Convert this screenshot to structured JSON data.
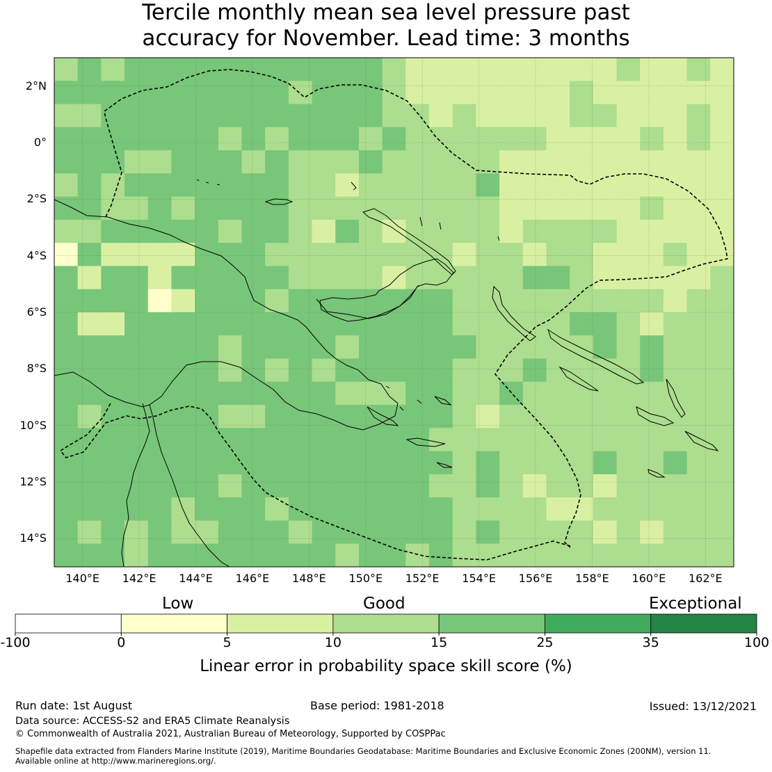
{
  "title": {
    "line1": "Tercile monthly mean sea level pressure past",
    "line2": "accuracy for November. Lead time: 3 months"
  },
  "map": {
    "lon_range": [
      139,
      163
    ],
    "lat_range": [
      -15,
      3
    ],
    "lat_labels": [
      "2°N",
      "0°",
      "2°S",
      "4°S",
      "6°S",
      "8°S",
      "10°S",
      "12°S",
      "14°S"
    ],
    "lat_values": [
      2,
      0,
      -2,
      -4,
      -6,
      -8,
      -10,
      -12,
      -14
    ],
    "lon_labels": [
      "140°E",
      "142°E",
      "144°E",
      "146°E",
      "148°E",
      "150°E",
      "152°E",
      "154°E",
      "156°E",
      "158°E",
      "160°E",
      "162°E"
    ],
    "lon_values": [
      140,
      142,
      144,
      146,
      148,
      150,
      152,
      154,
      156,
      158,
      160,
      162
    ],
    "grid_cell_resolution_deg": "approx 0.8",
    "dominant_category": "Good (15–25)"
  },
  "colorbar": {
    "categories": [
      "Low",
      "Good",
      "Exceptional"
    ],
    "ticks": [
      "-100",
      "0",
      "5",
      "10",
      "15",
      "25",
      "35",
      "100"
    ],
    "colors": [
      "#ffffff",
      "#ffffcc",
      "#d9f0a3",
      "#addd8e",
      "#78c679",
      "#41ab5d",
      "#238443"
    ],
    "label": "Linear error in probability space skill score (%)"
  },
  "footer": {
    "run_date": "Run date: 1st August",
    "base_period": "Base period: 1981-2018",
    "issued": "Issued: 13/12/2021",
    "data_source": "Data source: ACCESS-S2 and ERA5 Climate Reanalysis",
    "copyright": "© Commonwealth of Australia 2021, Australian Bureau of Meteorology, Supported by COSPPac",
    "shapefile_line1": "Shapefile data extracted from Flanders Marine Institute (2019), Maritime Boundaries Geodatabase: Maritime Boundaries and Exclusive Economic Zones (200NM), version 11.",
    "shapefile_line2": "Available online at http://www.marineregions.org/."
  }
}
